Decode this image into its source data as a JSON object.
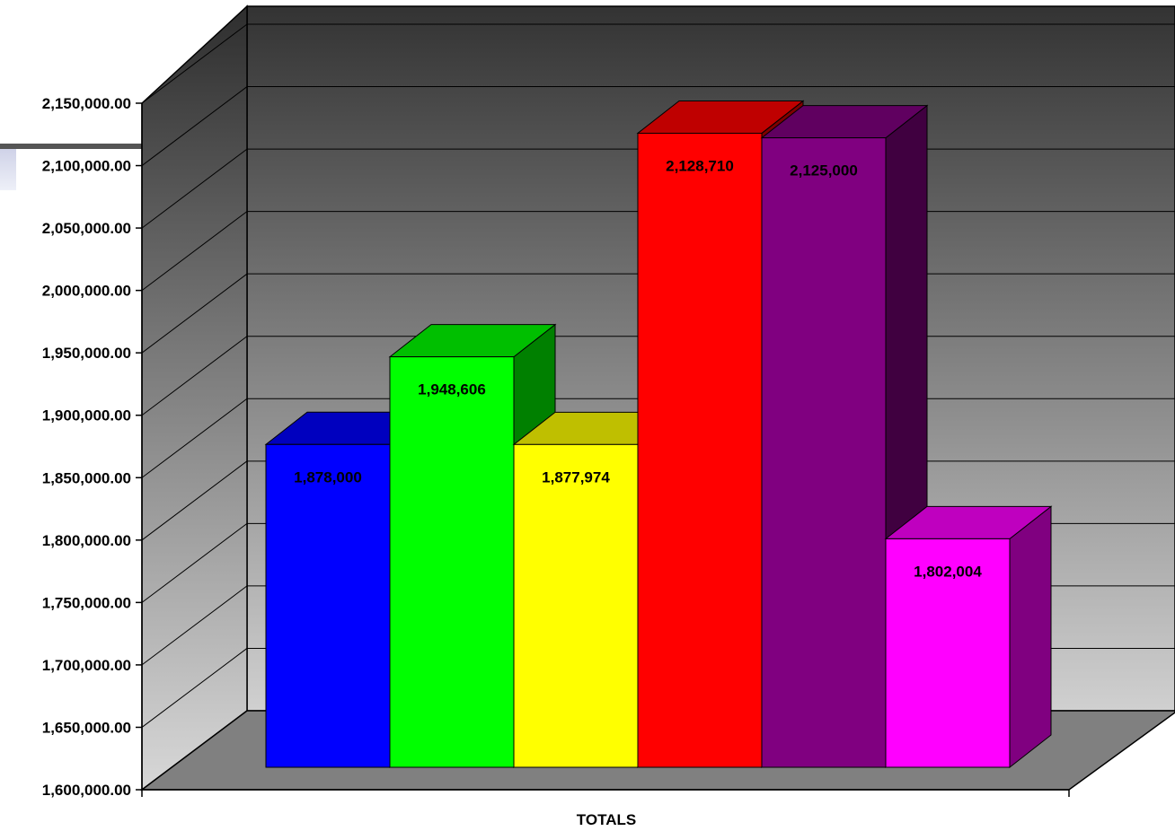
{
  "chart_data": {
    "type": "bar",
    "style": "3d-column",
    "title": "",
    "xlabel": "TOTALS",
    "ylabel": "",
    "categories": [
      "TOTALS"
    ],
    "series": [
      {
        "value": 1878000,
        "label": "1,878,000",
        "color": "#0000ff"
      },
      {
        "value": 1948606,
        "label": "1,948,606",
        "color": "#00ff00"
      },
      {
        "value": 1877974,
        "label": "1,877,974",
        "color": "#ffff00"
      },
      {
        "value": 2128710,
        "label": "2,128,710",
        "color": "#ff0000"
      },
      {
        "value": 2125000,
        "label": "2,125,000",
        "color": "#800080"
      },
      {
        "value": 1802004,
        "label": "1,802,004",
        "color": "#ff00ff"
      }
    ],
    "ylim": [
      1600000,
      2150000
    ],
    "ystep": 50000,
    "ytick_labels": [
      "1,600,000.00",
      "1,650,000.00",
      "1,700,000.00",
      "1,750,000.00",
      "1,800,000.00",
      "1,850,000.00",
      "1,900,000.00",
      "1,950,000.00",
      "2,000,000.00",
      "2,050,000.00",
      "2,100,000.00",
      "2,150,000.00"
    ],
    "grid": true,
    "legend": "none",
    "background": {
      "wall_top": "#333333",
      "wall_bottom": "#d0d0d0",
      "floor": "#808080"
    }
  }
}
